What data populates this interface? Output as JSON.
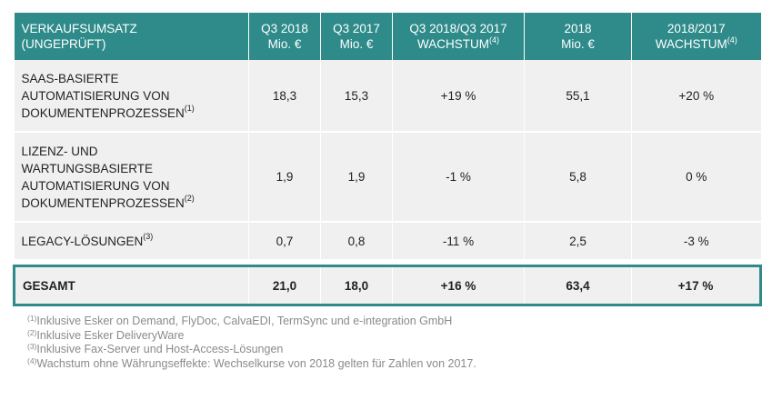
{
  "header": {
    "c0": "VERKAUFSUMSATZ",
    "c0b": "(UNGEPRÜFT)",
    "c1a": "Q3 2018",
    "c1b": "Mio. €",
    "c2a": "Q3 2017",
    "c2b": "Mio. €",
    "c3a": "Q3 2018/Q3 2017",
    "c3b": "WACHSTUM",
    "c3sup": "(4)",
    "c4a": "2018",
    "c4b": "Mio. €",
    "c5a": "2018/2017",
    "c5b": "WACHSTUM",
    "c5sup": "(4)"
  },
  "rows": [
    {
      "label_lines": [
        "SAAS-BASIERTE",
        "AUTOMATISIERUNG VON",
        "DOKUMENTENPROZESSEN"
      ],
      "sup": "(1)",
      "q3_2018": "18,3",
      "q3_2017": "15,3",
      "q3_growth": "+19 %",
      "y2018": "55,1",
      "y_growth": "+20 %"
    },
    {
      "label_lines": [
        "LIZENZ- UND",
        "WARTUNGSBASIERTE",
        "AUTOMATISIERUNG VON",
        "DOKUMENTENPROZESSEN"
      ],
      "sup": "(2)",
      "q3_2018": "1,9",
      "q3_2017": "1,9",
      "q3_growth": "-1 %",
      "y2018": "5,8",
      "y_growth": "0 %"
    },
    {
      "label_lines": [
        "LEGACY-LÖSUNGEN"
      ],
      "sup": "(3)",
      "q3_2018": "0,7",
      "q3_2017": "0,8",
      "q3_growth": "-11 %",
      "y2018": "2,5",
      "y_growth": "-3 %"
    }
  ],
  "total": {
    "label": "GESAMT",
    "q3_2018": "21,0",
    "q3_2017": "18,0",
    "q3_growth": "+16 %",
    "y2018": "63,4",
    "y_growth": "+17 %"
  },
  "footnotes": [
    {
      "mark": "(1)",
      "text": "Inklusive Esker on Demand, FlyDoc, CalvaEDI, TermSync und e-integration GmbH"
    },
    {
      "mark": "(2)",
      "text": "Inklusive Esker DeliveryWare"
    },
    {
      "mark": "(3)",
      "text": "Inklusive Fax-Server und Host-Access-Lösungen"
    },
    {
      "mark": "(4)",
      "text": "Wachstum ohne Währungseffekte: Wechselkurse von 2018 gelten für Zahlen von 2017."
    }
  ],
  "colors": {
    "header_bg": "#2e8b8a",
    "row_bg": "#f0f0f0",
    "footnote_text": "#8a8a8a"
  }
}
